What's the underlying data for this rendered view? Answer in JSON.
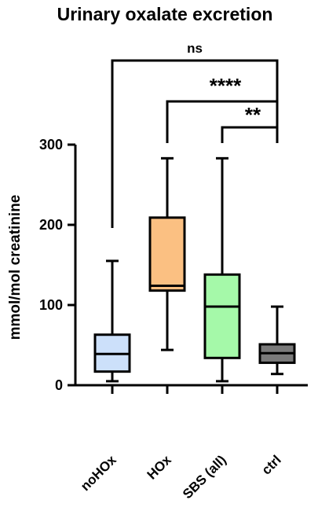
{
  "chart_data": {
    "type": "box",
    "title": "Urinary oxalate excretion",
    "ylabel": "mmol/mol  creatinine",
    "xlabel": "",
    "ylim": [
      0,
      300
    ],
    "yticks": [
      0,
      100,
      200,
      300
    ],
    "ytick_labels": [
      "0",
      "100",
      "200",
      "300"
    ],
    "categories": [
      "noHOx",
      "HOx",
      "SBS (all)",
      "ctrl"
    ],
    "series": [
      {
        "category": "noHOx",
        "min": 5,
        "q1": 17,
        "median": 39,
        "q3": 63,
        "max": 155,
        "color": "#cce0fa"
      },
      {
        "category": "HOx",
        "min": 44,
        "q1": 118,
        "median": 124,
        "q3": 209,
        "max": 283,
        "color": "#fbc082"
      },
      {
        "category": "SBS (all)",
        "min": 5,
        "q1": 34,
        "median": 98,
        "q3": 138,
        "max": 283,
        "color": "#a5f9a9"
      },
      {
        "category": "ctrl",
        "min": 14,
        "q1": 28,
        "median": 40,
        "q3": 51,
        "max": 98,
        "color": "#7a7a7a"
      }
    ],
    "significance": [
      {
        "from": "noHOx",
        "to": "ctrl",
        "label": "ns"
      },
      {
        "from": "HOx",
        "to": "ctrl",
        "label": "****"
      },
      {
        "from": "SBS (all)",
        "to": "ctrl",
        "label": "**"
      }
    ],
    "grid": false,
    "legend": "none"
  }
}
